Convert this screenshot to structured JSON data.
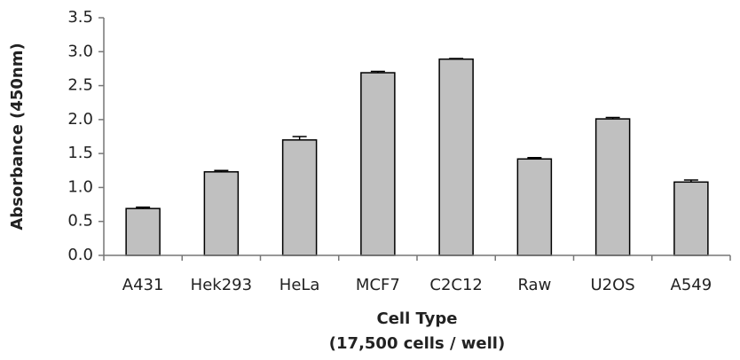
{
  "chart_data": {
    "type": "bar",
    "ylabel": "Absorbance (450nm)",
    "xlabel": [
      "Cell Type",
      "(17,500 cells / well)"
    ],
    "categories": [
      "A431",
      "Hek293",
      "HeLa",
      "MCF7",
      "C2C12",
      "Raw",
      "U2OS",
      "A549"
    ],
    "values": [
      0.69,
      1.23,
      1.7,
      2.69,
      2.89,
      1.42,
      2.01,
      1.08
    ],
    "errors": [
      0.02,
      0.02,
      0.05,
      0.02,
      0.01,
      0.02,
      0.02,
      0.03
    ],
    "color": "#c0c0c0",
    "ylim": [
      0,
      3.5
    ],
    "yticks": [
      {
        "value": 0,
        "label": "0.0"
      },
      0.5,
      {
        "value": 1,
        "label": "1.0"
      },
      1.5,
      {
        "value": 2,
        "label": "2.0"
      },
      2.5,
      {
        "value": 3,
        "label": "3.0"
      },
      3.5
    ],
    "grid": false
  }
}
